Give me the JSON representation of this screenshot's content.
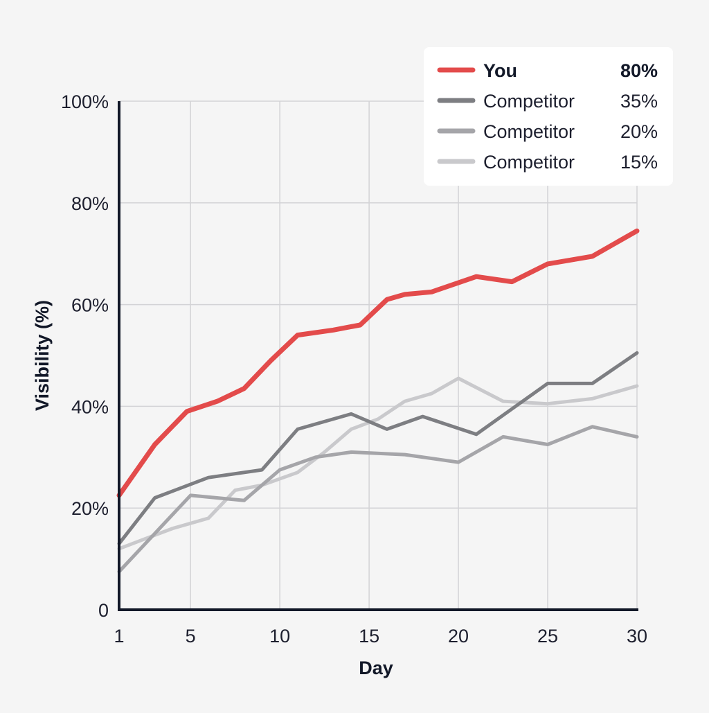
{
  "chart_data": {
    "type": "line",
    "xlabel": "Day",
    "ylabel": "Visibility (%)",
    "xlim": [
      1,
      30
    ],
    "ylim": [
      0,
      100
    ],
    "x_ticks": [
      1,
      5,
      10,
      15,
      20,
      25,
      30
    ],
    "x_tick_labels": [
      "1",
      "5",
      "10",
      "15",
      "20",
      "25",
      "30"
    ],
    "y_ticks": [
      0,
      20,
      40,
      60,
      80,
      100
    ],
    "y_tick_labels": [
      "0",
      "20%",
      "40%",
      "60%",
      "80%",
      "100%"
    ],
    "grid": true,
    "legend_position": "top-right",
    "series": [
      {
        "name": "You",
        "legend_value": "80%",
        "color": "#e34b4b",
        "x": [
          1,
          3,
          4.8,
          6.5,
          8,
          9.5,
          11,
          13,
          14.5,
          16,
          17,
          18.5,
          21,
          23,
          25,
          27.5,
          30
        ],
        "y": [
          22.5,
          32.5,
          39,
          41,
          43.5,
          49,
          54,
          55,
          56,
          61,
          62,
          62.5,
          65.5,
          64.5,
          68,
          69.5,
          74.5
        ]
      },
      {
        "name": "Competitor",
        "legend_value": "35%",
        "color": "#7d7e82",
        "x": [
          1,
          3,
          6,
          9,
          11,
          14,
          16,
          18,
          21,
          23,
          25,
          27.5,
          30
        ],
        "y": [
          13,
          22,
          26,
          27.5,
          35.5,
          38.5,
          35.5,
          38,
          34.5,
          39.5,
          44.5,
          44.5,
          50.5
        ]
      },
      {
        "name": "Competitor",
        "legend_value": "20%",
        "color": "#a5a5a9",
        "x": [
          1,
          3,
          5,
          8,
          10,
          12,
          14,
          17,
          20,
          22.5,
          25,
          27.5,
          30
        ],
        "y": [
          7.5,
          15,
          22.5,
          21.5,
          27.5,
          30,
          31,
          30.5,
          29,
          34,
          32.5,
          36,
          34
        ]
      },
      {
        "name": "Competitor",
        "legend_value": "15%",
        "color": "#c9c9cc",
        "x": [
          1,
          2.5,
          4,
          6,
          7.5,
          9,
          11,
          12.5,
          14,
          15.5,
          17,
          18.5,
          20,
          22.5,
          25,
          27.5,
          30
        ],
        "y": [
          12,
          14,
          16,
          18,
          23.5,
          24.5,
          27,
          31,
          35.5,
          37.5,
          41,
          42.5,
          45.5,
          41,
          40.5,
          41.5,
          44
        ]
      }
    ]
  }
}
